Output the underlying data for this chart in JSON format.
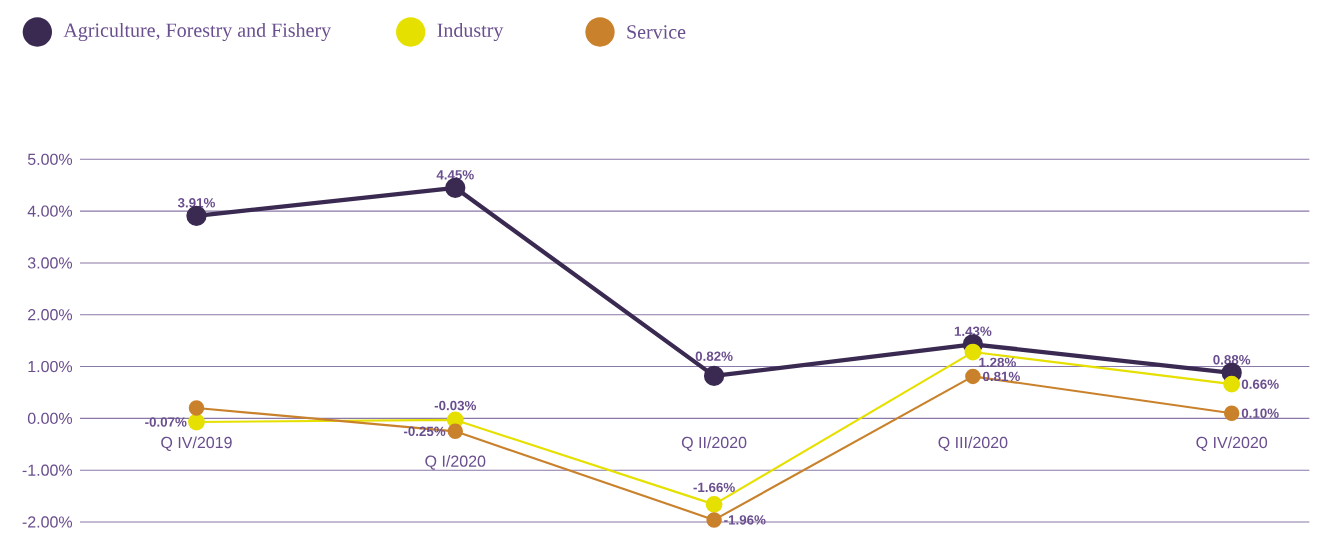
{
  "chart_data": {
    "type": "line",
    "categories": [
      "Q IV/2019",
      "Q I/2020",
      "Q II/2020",
      "Q III/2020",
      "Q IV/2020"
    ],
    "series": [
      {
        "name": "Agriculture, Forestry and Fishery",
        "color": "#3a2a52",
        "values": [
          3.91,
          4.45,
          0.82,
          1.43,
          0.88
        ],
        "value_labels": [
          "3.91%",
          "4.45%",
          "0.82%",
          "1.43%",
          "0.88%"
        ]
      },
      {
        "name": "Industry",
        "color": "#e6e000",
        "values": [
          -0.07,
          -0.03,
          -1.66,
          1.28,
          0.66
        ],
        "value_labels": [
          "-0.07%",
          "-0.03%",
          "-1.66%",
          "1.28%",
          "0.66%"
        ]
      },
      {
        "name": "Service",
        "color": "#c9812b",
        "values": [
          0.2,
          -0.25,
          -1.96,
          0.81,
          0.1
        ],
        "value_labels": [
          null,
          "-0.25%",
          "-1.96%",
          "0.81%",
          "0.10%"
        ]
      }
    ],
    "ylim": [
      -2,
      5
    ],
    "yticks": [
      {
        "value": -2,
        "label": "-2.00%"
      },
      {
        "value": -1,
        "label": "-1.00%"
      },
      {
        "value": 0,
        "label": "0.00%"
      },
      {
        "value": 1,
        "label": "1.00%"
      },
      {
        "value": 2,
        "label": "2.00%"
      },
      {
        "value": 3,
        "label": "3.00%"
      },
      {
        "value": 4,
        "label": "4.00%"
      },
      {
        "value": 5,
        "label": "5.00%"
      }
    ],
    "grid": "y",
    "legend": "top left",
    "marker": "circle",
    "line_style": "solid"
  }
}
